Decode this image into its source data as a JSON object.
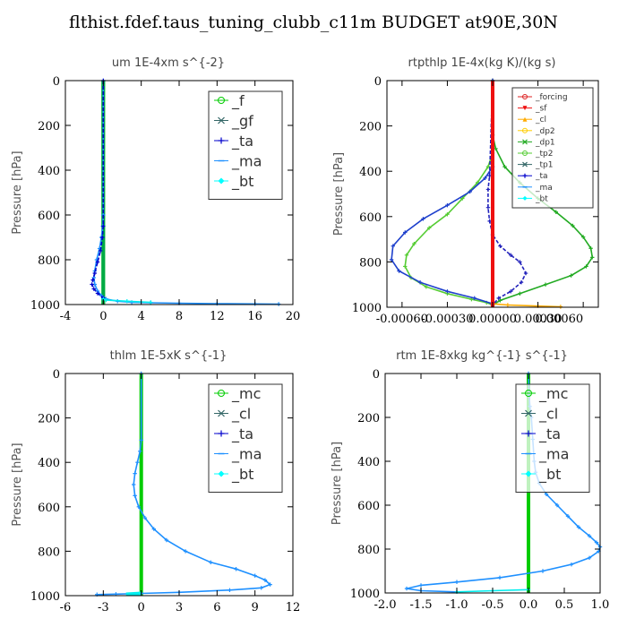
{
  "title": "flthist.fdef.taus_tuning_clubb_c11m  BUDGET at90E,30N",
  "chart_data": [
    {
      "type": "line",
      "title": "um  1E-4xm s^{-2}",
      "ylabel": "Pressure [hPa]",
      "xlim": [
        -4,
        20
      ],
      "ylim": [
        1000,
        0
      ],
      "xticks": [
        "-4",
        "0",
        "4",
        "8",
        "12",
        "16",
        "20"
      ],
      "xtick_values": [
        -4,
        0,
        4,
        8,
        12,
        16,
        20
      ],
      "yticks": [
        "0",
        "200",
        "400",
        "600",
        "800",
        "1000"
      ],
      "ytick_values": [
        0,
        200,
        400,
        600,
        800,
        1000
      ],
      "legend": {
        "position": "top-right",
        "size": "large",
        "entries": [
          {
            "label": "_f",
            "color": "#00cc00",
            "marker": "o"
          },
          {
            "label": "_gf",
            "color": "#336666",
            "marker": "x"
          },
          {
            "label": "_ta",
            "color": "#0000cc",
            "marker": "+"
          },
          {
            "label": "_ma",
            "color": "#1e90ff",
            "marker": "-"
          },
          {
            "label": "_bt",
            "color": "#00ffff",
            "marker": "d"
          }
        ]
      },
      "series": [
        {
          "name": "_f",
          "color": "#00cc00",
          "x": [
            0,
            0
          ],
          "y": [
            0,
            1000
          ]
        },
        {
          "name": "_gf",
          "color": "#00aa44",
          "x": [
            0,
            0
          ],
          "y": [
            0,
            1000
          ]
        },
        {
          "name": "_ma",
          "color": "#1e90ff",
          "x": [
            0,
            0,
            -0.05,
            -0.2,
            -0.4,
            -0.7,
            -0.9,
            -1.0,
            -0.9,
            -0.6,
            -0.2,
            0.3,
            1.5,
            3,
            5,
            8,
            12,
            16,
            18.5
          ],
          "y": [
            0,
            600,
            650,
            700,
            750,
            800,
            850,
            880,
            910,
            940,
            960,
            975,
            985,
            990,
            992,
            994,
            996,
            997,
            998
          ]
        },
        {
          "name": "_ta",
          "color": "#0000cc",
          "x": [
            0,
            0,
            -0.1,
            -0.3,
            -0.6,
            -0.9,
            -1.1,
            -1.2,
            -1.0,
            -0.6,
            0
          ],
          "y": [
            0,
            650,
            700,
            760,
            810,
            860,
            890,
            910,
            930,
            950,
            970
          ]
        },
        {
          "name": "_bt",
          "color": "#00eeee",
          "x": [
            0,
            0.3,
            2.5,
            5
          ],
          "y": [
            975,
            980,
            985,
            990
          ]
        }
      ]
    },
    {
      "type": "line",
      "title": "rtpthlp  1E-4x(kg K)/(kg s)",
      "ylabel": "Pressure [hPa]",
      "xlim": [
        -0.0007,
        0.0007
      ],
      "ylim": [
        1000,
        0
      ],
      "xticks": [
        "-0.00060",
        "-0.00030",
        "0.00000",
        "0.00030",
        "0.00060"
      ],
      "xtick_values": [
        -0.0006,
        -0.0003,
        0,
        0.0003,
        0.0006
      ],
      "yticks": [
        "0",
        "200",
        "400",
        "600",
        "800",
        "1000"
      ],
      "ytick_values": [
        0,
        200,
        400,
        600,
        800,
        1000
      ],
      "legend": {
        "position": "top-right",
        "size": "small",
        "entries": [
          {
            "label": "_forcing",
            "color": "#dd2222",
            "marker": "o"
          },
          {
            "label": "_sf",
            "color": "#ee1111",
            "marker": "v"
          },
          {
            "label": "_cl",
            "color": "#ffaa00",
            "marker": "^"
          },
          {
            "label": "_dp2",
            "color": "#ffcc00",
            "marker": "o"
          },
          {
            "label": "_dp1",
            "color": "#22aa22",
            "marker": "x"
          },
          {
            "label": "_tp2",
            "color": "#55cc33",
            "marker": "o"
          },
          {
            "label": "_tp1",
            "color": "#336666",
            "marker": "x"
          },
          {
            "label": "_ta",
            "color": "#0000cc",
            "marker": "+"
          },
          {
            "label": "_ma",
            "color": "#1e90ff",
            "marker": "-"
          },
          {
            "label": "_bt",
            "color": "#00ffff",
            "marker": "d"
          }
        ]
      },
      "series": [
        {
          "name": "_dp1",
          "color": "#22aa22",
          "x": [
            0,
            0,
            2e-05,
            8e-05,
            0.00018,
            0.0003,
            0.00042,
            0.00053,
            0.0006,
            0.00065,
            0.00066,
            0.00062,
            0.00052,
            0.00035,
            0.00018,
            5e-05,
            0
          ],
          "y": [
            0,
            240,
            300,
            380,
            450,
            520,
            580,
            640,
            690,
            740,
            780,
            820,
            860,
            900,
            940,
            970,
            990
          ]
        },
        {
          "name": "_tp2",
          "color": "#55cc33",
          "x": [
            0,
            0,
            -3e-05,
            -0.0001,
            -0.0002,
            -0.0003,
            -0.00042,
            -0.00052,
            -0.00057,
            -0.00058,
            -0.00054,
            -0.00044,
            -0.0003,
            -0.00014,
            -4e-05,
            0
          ],
          "y": [
            0,
            320,
            380,
            450,
            520,
            590,
            650,
            720,
            770,
            820,
            870,
            910,
            940,
            965,
            980,
            990
          ]
        },
        {
          "name": "_tp1",
          "color": "#1e40cc",
          "x": [
            0,
            0,
            -5e-05,
            -0.00015,
            -0.0003,
            -0.00046,
            -0.00058,
            -0.00066,
            -0.00067,
            -0.00062,
            -0.00048,
            -0.0003,
            -0.00012,
            0
          ],
          "y": [
            0,
            380,
            430,
            490,
            550,
            610,
            670,
            730,
            790,
            840,
            890,
            930,
            960,
            985
          ]
        },
        {
          "name": "_ta",
          "color": "#2222bb",
          "x": [
            0,
            -2e-05,
            -3e-05,
            -3e-05,
            -2e-05,
            0,
            5e-05,
            0.00012,
            0.00018,
            0.00022,
            0.00019,
            0.00012,
            4e-05,
            0
          ],
          "y": [
            0,
            420,
            480,
            560,
            620,
            680,
            730,
            770,
            800,
            850,
            890,
            930,
            960,
            990
          ]
        },
        {
          "name": "_cl",
          "color": "#ffaa00",
          "x": [
            0,
            0.0001,
            0.0003,
            0.00045
          ],
          "y": [
            985,
            990,
            995,
            998
          ]
        },
        {
          "name": "_forcing",
          "color": "#dd2222",
          "x": [
            0,
            0
          ],
          "y": [
            0,
            1000
          ]
        },
        {
          "name": "_sf",
          "color": "#ee1111",
          "x": [
            0,
            0
          ],
          "y": [
            0,
            1000
          ]
        }
      ]
    },
    {
      "type": "line",
      "title": "thlm  1E-5xK s^{-1}",
      "ylabel": "Pressure [hPa]",
      "xlim": [
        -6,
        12
      ],
      "ylim": [
        1000,
        0
      ],
      "xticks": [
        "-6",
        "-3",
        "0",
        "3",
        "6",
        "9",
        "12"
      ],
      "xtick_values": [
        -6,
        -3,
        0,
        3,
        6,
        9,
        12
      ],
      "yticks": [
        "0",
        "200",
        "400",
        "600",
        "800",
        "1000"
      ],
      "ytick_values": [
        0,
        200,
        400,
        600,
        800,
        1000
      ],
      "legend": {
        "position": "top-right",
        "size": "large",
        "entries": [
          {
            "label": "_mc",
            "color": "#00cc00",
            "marker": "o"
          },
          {
            "label": "_cl",
            "color": "#336666",
            "marker": "x"
          },
          {
            "label": "_ta",
            "color": "#0000cc",
            "marker": "+"
          },
          {
            "label": "_ma",
            "color": "#1e90ff",
            "marker": "-"
          },
          {
            "label": "_bt",
            "color": "#00ffff",
            "marker": "d"
          }
        ]
      },
      "series": [
        {
          "name": "_mc",
          "color": "#00cc00",
          "x": [
            0,
            0
          ],
          "y": [
            0,
            1000
          ]
        },
        {
          "name": "_ma",
          "color": "#1e90ff",
          "x": [
            0,
            0,
            -0.1,
            -0.3,
            -0.5,
            -0.6,
            -0.5,
            -0.2,
            0.3,
            1,
            2,
            3.5,
            5.5,
            7.5,
            9,
            9.8,
            10.2,
            9.5,
            7,
            3,
            0,
            -2,
            -3.5
          ],
          "y": [
            0,
            300,
            350,
            400,
            450,
            500,
            550,
            600,
            650,
            700,
            750,
            800,
            850,
            880,
            910,
            930,
            950,
            965,
            975,
            985,
            990,
            993,
            995
          ]
        },
        {
          "name": "_bt",
          "color": "#00eeee",
          "x": [
            0,
            -1.2
          ],
          "y": [
            990,
            994
          ]
        }
      ]
    },
    {
      "type": "line",
      "title": "rtm  1E-8xkg kg^{-1} s^{-1}",
      "ylabel": "Pressure [hPa]",
      "xlim": [
        -2.0,
        1.0
      ],
      "ylim": [
        1000,
        0
      ],
      "xticks": [
        "-2.0",
        "-1.5",
        "-1.0",
        "-0.5",
        "0.0",
        "0.5",
        "1.0"
      ],
      "xtick_values": [
        -2.0,
        -1.5,
        -1.0,
        -0.5,
        0.0,
        0.5,
        1.0
      ],
      "yticks": [
        "0",
        "200",
        "400",
        "600",
        "800",
        "1000"
      ],
      "ytick_values": [
        0,
        200,
        400,
        600,
        800,
        1000
      ],
      "legend": {
        "position": "top-right",
        "size": "large",
        "entries": [
          {
            "label": "_mc",
            "color": "#00cc00",
            "marker": "o"
          },
          {
            "label": "_cl",
            "color": "#336666",
            "marker": "x"
          },
          {
            "label": "_ta",
            "color": "#0000cc",
            "marker": "+"
          },
          {
            "label": "_ma",
            "color": "#1e90ff",
            "marker": "-"
          },
          {
            "label": "_bt",
            "color": "#00ffff",
            "marker": "d"
          }
        ]
      },
      "series": [
        {
          "name": "_mc",
          "color": "#00cc00",
          "x": [
            0,
            0
          ],
          "y": [
            0,
            1000
          ]
        },
        {
          "name": "_ma",
          "color": "#1e90ff",
          "x": [
            0,
            0.01,
            0.02,
            0.04,
            0.06,
            0.08,
            0.1,
            0.15,
            0.25,
            0.4,
            0.55,
            0.7,
            0.85,
            0.95,
            1.0,
            0.98,
            0.85,
            0.6,
            0.2,
            -0.4,
            -1.0,
            -1.5,
            -1.7,
            -1.5,
            -1.0
          ],
          "y": [
            0,
            100,
            150,
            200,
            300,
            400,
            450,
            500,
            550,
            600,
            650,
            700,
            740,
            770,
            790,
            810,
            840,
            870,
            900,
            930,
            950,
            965,
            980,
            990,
            995
          ]
        },
        {
          "name": "_bt",
          "color": "#00eeee",
          "x": [
            0,
            -0.5,
            -1.0
          ],
          "y": [
            985,
            990,
            995
          ]
        }
      ]
    }
  ]
}
